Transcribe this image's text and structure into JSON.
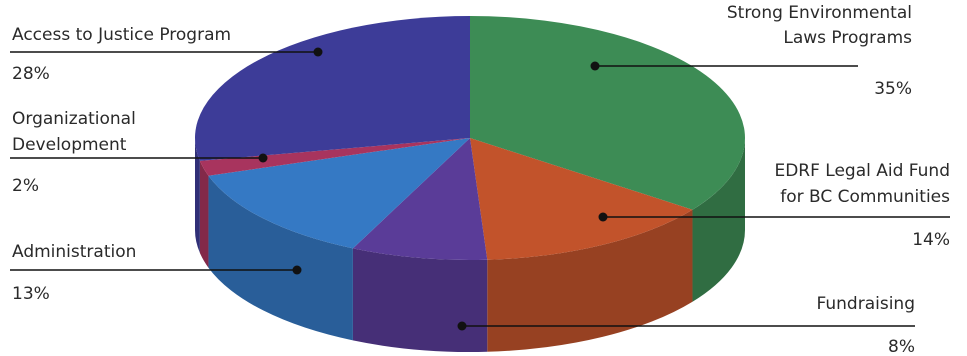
{
  "chart_data": {
    "type": "pie",
    "style": "3d",
    "title": "",
    "slices": [
      {
        "name": "Strong Environmental Laws Programs",
        "value": 35,
        "value_label": "35%",
        "label_lines": [
          "Strong Environmental",
          "Laws Programs"
        ],
        "color": "#3d8c55"
      },
      {
        "name": "EDRF Legal Aid Fund for BC Communities",
        "value": 14,
        "value_label": "14%",
        "label_lines": [
          "EDRF Legal Aid Fund",
          "for BC Communities"
        ],
        "color": "#c2532b"
      },
      {
        "name": "Fundraising",
        "value": 8,
        "value_label": "8%",
        "label_lines": [
          "Fundraising"
        ],
        "color": "#5a3c98"
      },
      {
        "name": "Administration",
        "value": 13,
        "value_label": "13%",
        "label_lines": [
          "Administration"
        ],
        "color": "#3579c4"
      },
      {
        "name": "Organizational Development",
        "value": 2,
        "value_label": "2%",
        "label_lines": [
          "Organizational",
          "Development"
        ],
        "color": "#a8345e"
      },
      {
        "name": "Access to Justice Program",
        "value": 28,
        "value_label": "28%",
        "label_lines": [
          "Access to Justice Program"
        ],
        "color": "#3d3c98"
      }
    ]
  }
}
